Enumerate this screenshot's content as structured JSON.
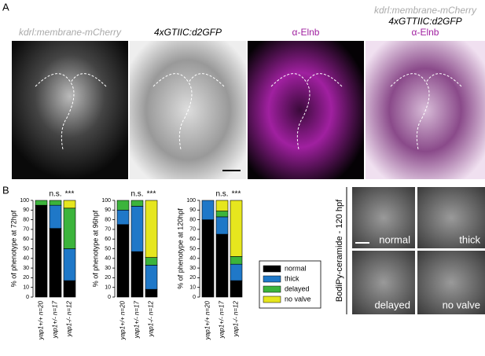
{
  "panel_labels": [
    "A",
    "B"
  ],
  "images": [
    {
      "title_lines": [
        "kdrl:membrane-mCherry"
      ]
    },
    {
      "title_lines": [
        "4xGTIIC:d2GFP"
      ]
    },
    {
      "title_lines": [
        "α-Elnb"
      ]
    },
    {
      "title_lines": [
        "kdrl:membrane-mCherry",
        "4xGTTIIC:d2GFP",
        "α-Elnb"
      ]
    }
  ],
  "phenotypes": [
    {
      "name": "normal",
      "color": "#000000"
    },
    {
      "name": "thick",
      "color": "#1f78c8"
    },
    {
      "name": "delayed",
      "color": "#3cb43c"
    },
    {
      "name": "no valve",
      "color": "#e6e61e"
    }
  ],
  "chart_data": [
    {
      "type": "stacked_bar",
      "y_label": "% of phenotype at 72hpf",
      "categories": [
        "yap1+/+ n=20",
        "yap1+/- n=17",
        "yap1-/- n=12"
      ],
      "series": [
        {
          "values": [
            95,
            71,
            17
          ]
        },
        {
          "values": [
            0,
            24,
            33
          ]
        },
        {
          "values": [
            5,
            5,
            42
          ]
        },
        {
          "values": [
            0,
            0,
            8
          ]
        }
      ],
      "annotations": [
        "n.s.",
        "***"
      ],
      "ylim": [
        0,
        100
      ],
      "yticks": [
        0,
        10,
        20,
        30,
        40,
        50,
        60,
        70,
        80,
        90,
        100
      ]
    },
    {
      "type": "stacked_bar",
      "y_label": "% of phenotype at 96hpf",
      "categories": [
        "yap1+/+ n=20",
        "yap1+/- n=17",
        "yap1-/- n=12"
      ],
      "series": [
        {
          "values": [
            75,
            47,
            8
          ]
        },
        {
          "values": [
            15,
            47,
            25
          ]
        },
        {
          "values": [
            10,
            6,
            8
          ]
        },
        {
          "values": [
            0,
            0,
            59
          ]
        }
      ],
      "annotations": [
        "n.s.",
        "***"
      ],
      "ylim": [
        0,
        100
      ],
      "yticks": [
        0,
        10,
        20,
        30,
        40,
        50,
        60,
        70,
        80,
        90,
        100
      ]
    },
    {
      "type": "stacked_bar",
      "y_label": "% of phenotype at 120hpf",
      "categories": [
        "yap1+/+ n=20",
        "yap1+/- n=17",
        "yap1-/- n=12"
      ],
      "series": [
        {
          "values": [
            80,
            65,
            17
          ]
        },
        {
          "values": [
            20,
            18,
            17
          ]
        },
        {
          "values": [
            0,
            6,
            8
          ]
        },
        {
          "values": [
            0,
            11,
            58
          ]
        }
      ],
      "annotations": [
        "n.s.",
        "***"
      ],
      "ylim": [
        0,
        100
      ],
      "yticks": [
        0,
        10,
        20,
        30,
        40,
        50,
        60,
        70,
        80,
        90,
        100
      ]
    }
  ],
  "bodipy": {
    "title": "BodiPy-ceramide - 120 hpf",
    "labels": [
      "normal",
      "thick",
      "delayed",
      "no valve"
    ]
  }
}
